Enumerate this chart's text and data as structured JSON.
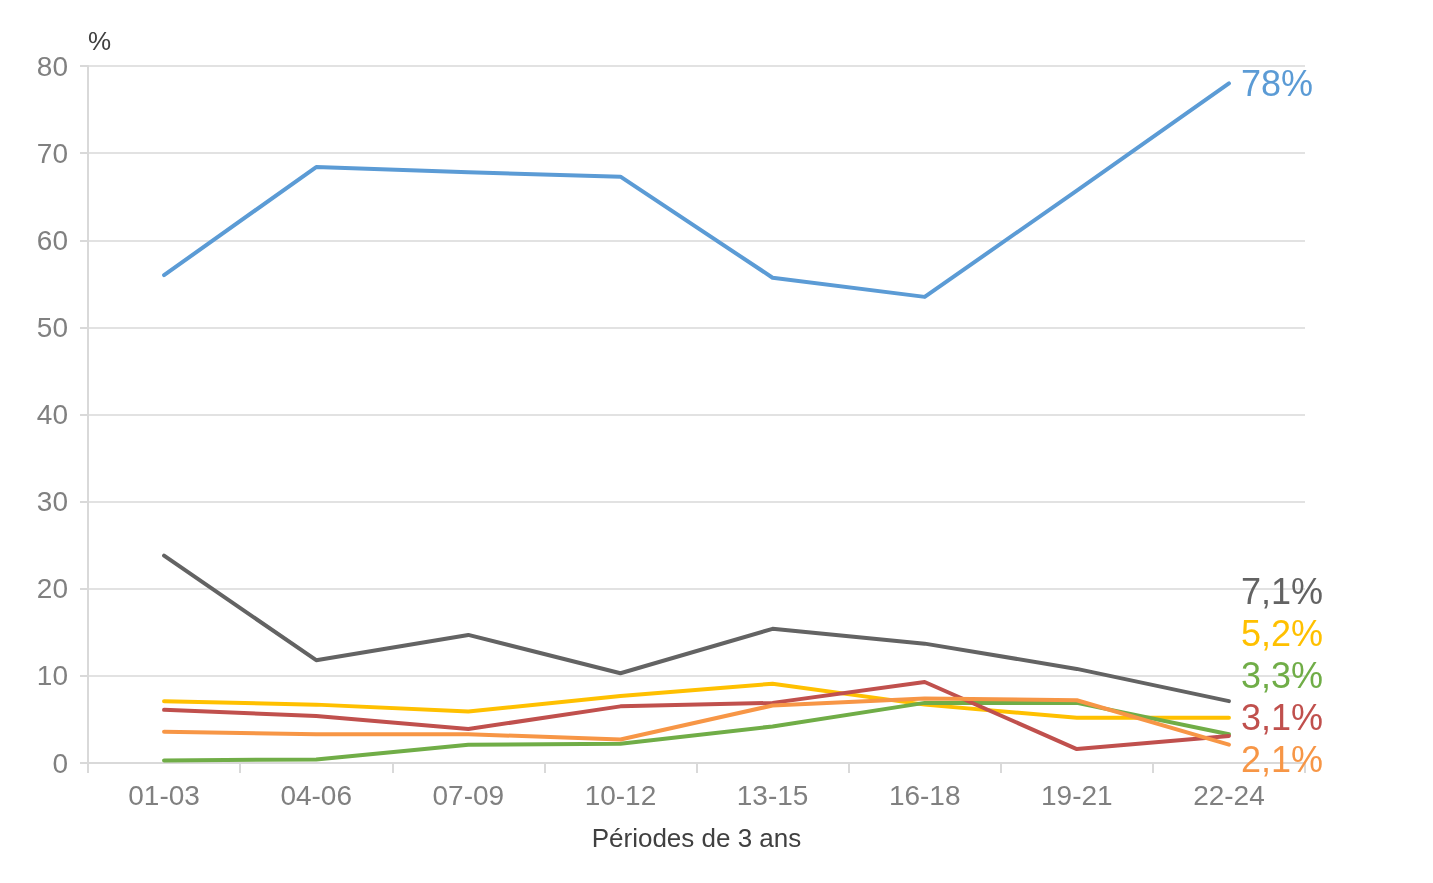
{
  "chart_data": {
    "type": "line",
    "ylabel": "%",
    "xlabel": "Périodes de 3 ans",
    "categories": [
      "01-03",
      "04-06",
      "07-09",
      "10-12",
      "13-15",
      "16-18",
      "19-21",
      "22-24"
    ],
    "ylim": [
      0,
      80
    ],
    "yticks": [
      0,
      10,
      20,
      30,
      40,
      50,
      60,
      70,
      80
    ],
    "grid": "y",
    "marker": "none",
    "line_style": "solid",
    "series": [
      {
        "color": "#5b9bd5",
        "values": [
          56,
          68.4,
          67.8,
          67.3,
          55.7,
          53.5,
          65.7,
          78
        ],
        "value_labels": [
          null,
          null,
          null,
          null,
          null,
          null,
          null,
          "78%"
        ]
      },
      {
        "color": "#636363",
        "values": [
          23.8,
          11.8,
          14.7,
          10.3,
          15.4,
          13.7,
          10.8,
          7.1
        ],
        "value_labels": [
          null,
          null,
          null,
          null,
          null,
          null,
          null,
          "7,1%"
        ]
      },
      {
        "color": "#ffc000",
        "values": [
          7.1,
          6.7,
          5.9,
          7.7,
          9.1,
          6.7,
          5.2,
          5.2
        ],
        "value_labels": [
          null,
          null,
          null,
          null,
          null,
          null,
          null,
          "5,2%"
        ]
      },
      {
        "color": "#70ad47",
        "values": [
          0.3,
          0.4,
          2.1,
          2.2,
          4.2,
          6.9,
          6.9,
          3.3
        ],
        "value_labels": [
          null,
          null,
          null,
          null,
          null,
          null,
          null,
          "3,3%"
        ]
      },
      {
        "color": "#c0504d",
        "values": [
          6.1,
          5.4,
          3.9,
          6.5,
          6.9,
          9.3,
          1.6,
          3.1
        ],
        "value_labels": [
          null,
          null,
          null,
          null,
          null,
          null,
          null,
          "3,1%"
        ]
      },
      {
        "color": "#f79646",
        "values": [
          3.6,
          3.3,
          3.3,
          2.7,
          6.6,
          7.4,
          7.2,
          2.1
        ],
        "value_labels": [
          null,
          null,
          null,
          null,
          null,
          null,
          null,
          "2,1%"
        ]
      }
    ]
  }
}
